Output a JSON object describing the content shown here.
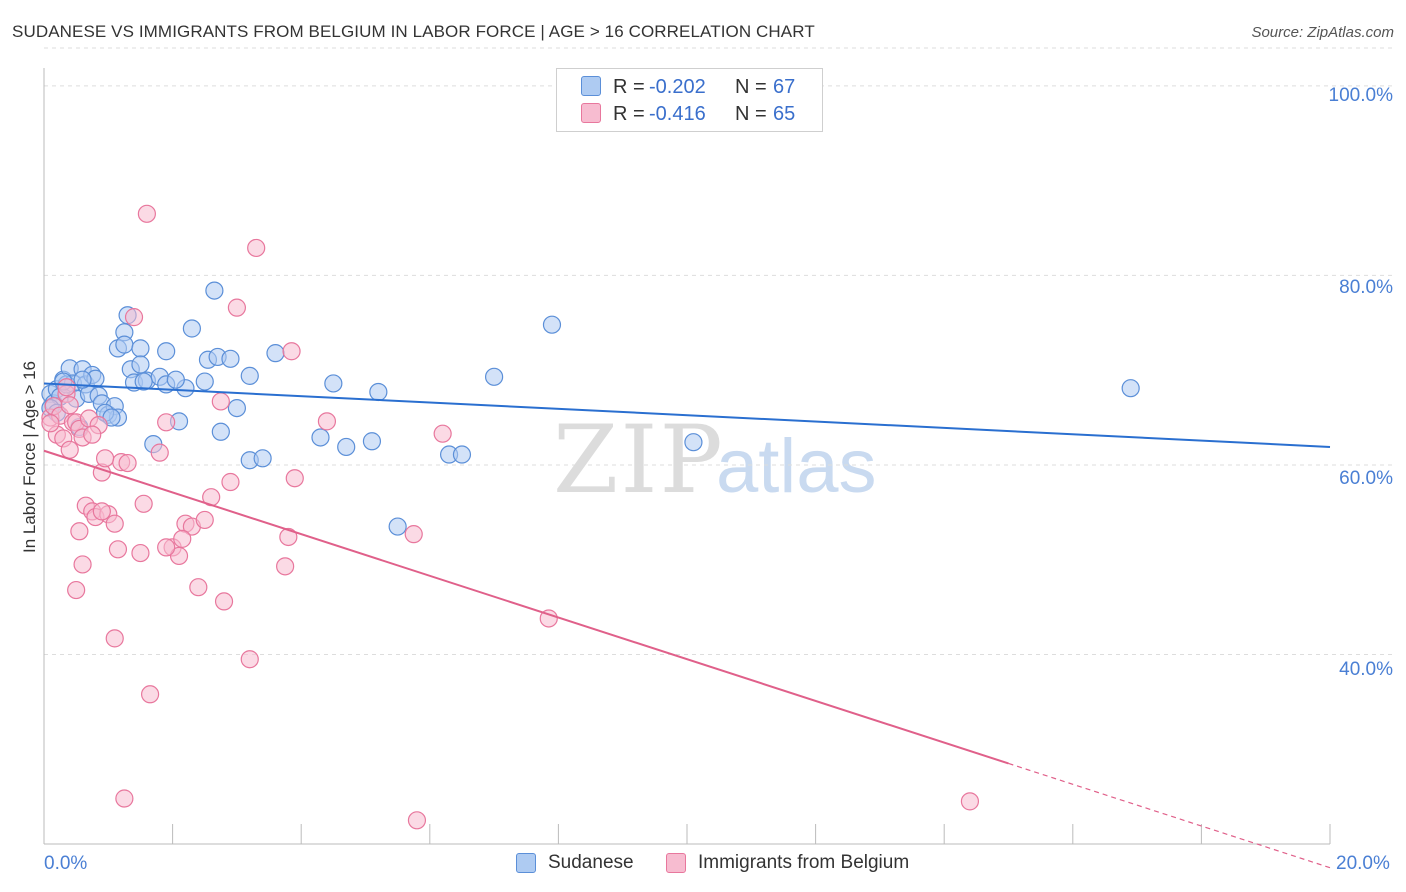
{
  "title": "SUDANESE VS IMMIGRANTS FROM BELGIUM IN LABOR FORCE | AGE > 16 CORRELATION CHART",
  "source": "Source: ZipAtlas.com",
  "watermark": {
    "zip": "ZIP",
    "atlas": "atlas"
  },
  "legend_top": {
    "rows": [
      {
        "r_label": "R =",
        "r_value": "-0.202",
        "n_label": "N =",
        "n_value": "67"
      },
      {
        "r_label": "R =",
        "r_value": "-0.416",
        "n_label": "N =",
        "n_value": "65"
      }
    ]
  },
  "legend_bottom": {
    "items": [
      "Sudanese",
      "Immigrants from Belgium"
    ]
  },
  "colors": {
    "blue_fill": "#aecbf2",
    "blue_stroke": "#5b8fd8",
    "blue_line": "#2a6fd0",
    "pink_fill": "#f7bcd0",
    "pink_stroke": "#e8779d",
    "pink_line": "#e0608a",
    "grid": "#dddddd",
    "tick_text": "#4a7fd4"
  },
  "chart_data": {
    "type": "scatter",
    "title": "SUDANESE VS IMMIGRANTS FROM BELGIUM IN LABOR FORCE | AGE > 16 CORRELATION CHART",
    "xlabel": "",
    "ylabel": "In Labor Force | Age > 16",
    "xlim": [
      0,
      20
    ],
    "ylim": [
      20,
      104
    ],
    "x_tick_labels": [
      "0.0%",
      "20.0%"
    ],
    "y_ticks": [
      40,
      60,
      80,
      100
    ],
    "y_tick_labels": [
      "40.0%",
      "60.0%",
      "80.0%",
      "100.0%"
    ],
    "grid": true,
    "legend_position": "top-center",
    "series": [
      {
        "name": "Sudanese",
        "R": -0.202,
        "N": 67,
        "trend": {
          "x": [
            0.0,
            20.0
          ],
          "y": [
            68.6,
            61.9
          ]
        },
        "points": [
          [
            0.1,
            67.5
          ],
          [
            0.15,
            66.5
          ],
          [
            0.2,
            68.0
          ],
          [
            0.25,
            67.2
          ],
          [
            0.3,
            69.0
          ],
          [
            0.35,
            68.5
          ],
          [
            0.4,
            70.2
          ],
          [
            0.45,
            68.6
          ],
          [
            0.5,
            67.0
          ],
          [
            0.55,
            64.0
          ],
          [
            0.6,
            70.1
          ],
          [
            0.65,
            68.5
          ],
          [
            0.7,
            67.5
          ],
          [
            0.75,
            69.5
          ],
          [
            0.8,
            69.1
          ],
          [
            0.85,
            67.3
          ],
          [
            0.9,
            66.5
          ],
          [
            1.0,
            65.3
          ],
          [
            1.1,
            66.2
          ],
          [
            1.15,
            65.0
          ],
          [
            1.25,
            74.0
          ],
          [
            1.3,
            75.8
          ],
          [
            1.35,
            70.1
          ],
          [
            1.4,
            68.7
          ],
          [
            1.15,
            72.3
          ],
          [
            1.25,
            72.7
          ],
          [
            1.5,
            72.3
          ],
          [
            1.5,
            70.6
          ],
          [
            1.6,
            68.9
          ],
          [
            1.7,
            62.2
          ],
          [
            1.8,
            69.3
          ],
          [
            1.9,
            72.0
          ],
          [
            1.9,
            68.5
          ],
          [
            2.1,
            64.6
          ],
          [
            2.2,
            68.1
          ],
          [
            2.3,
            74.4
          ],
          [
            2.5,
            68.8
          ],
          [
            2.55,
            71.1
          ],
          [
            2.65,
            78.4
          ],
          [
            2.7,
            71.4
          ],
          [
            2.75,
            63.5
          ],
          [
            2.9,
            71.2
          ],
          [
            3.0,
            66.0
          ],
          [
            3.2,
            69.4
          ],
          [
            3.2,
            60.5
          ],
          [
            3.4,
            60.7
          ],
          [
            3.6,
            71.8
          ],
          [
            4.3,
            62.9
          ],
          [
            4.5,
            68.6
          ],
          [
            4.7,
            61.9
          ],
          [
            5.1,
            62.5
          ],
          [
            5.2,
            67.7
          ],
          [
            5.5,
            53.5
          ],
          [
            6.3,
            61.1
          ],
          [
            6.5,
            61.1
          ],
          [
            7.0,
            69.3
          ],
          [
            7.9,
            74.8
          ],
          [
            10.1,
            62.4
          ],
          [
            16.9,
            68.1
          ],
          [
            0.1,
            66.0
          ],
          [
            0.2,
            65.5
          ],
          [
            0.3,
            68.8
          ],
          [
            0.6,
            69.0
          ],
          [
            0.95,
            65.5
          ],
          [
            1.05,
            65.0
          ],
          [
            1.55,
            68.8
          ],
          [
            2.05,
            69.0
          ]
        ]
      },
      {
        "name": "Immigrants from Belgium",
        "R": -0.416,
        "N": 65,
        "trend": {
          "x": [
            0.0,
            15.0
          ],
          "y": [
            61.5,
            28.5
          ]
        },
        "trend_dashed": {
          "x": [
            15.0,
            20.0
          ],
          "y": [
            28.5,
            17.5
          ]
        },
        "points": [
          [
            0.1,
            65.0
          ],
          [
            0.15,
            66.2
          ],
          [
            0.2,
            63.2
          ],
          [
            0.25,
            65.2
          ],
          [
            0.3,
            62.8
          ],
          [
            0.35,
            67.5
          ],
          [
            0.4,
            61.6
          ],
          [
            0.45,
            64.5
          ],
          [
            0.5,
            64.5
          ],
          [
            0.55,
            63.8
          ],
          [
            0.6,
            62.9
          ],
          [
            0.65,
            55.7
          ],
          [
            0.7,
            64.9
          ],
          [
            0.75,
            55.1
          ],
          [
            0.8,
            54.5
          ],
          [
            0.85,
            64.2
          ],
          [
            0.9,
            59.2
          ],
          [
            1.0,
            54.8
          ],
          [
            1.1,
            53.8
          ],
          [
            1.2,
            60.3
          ],
          [
            1.3,
            60.2
          ],
          [
            1.4,
            75.6
          ],
          [
            1.5,
            50.7
          ],
          [
            1.6,
            86.5
          ],
          [
            1.8,
            61.3
          ],
          [
            1.9,
            64.5
          ],
          [
            2.0,
            51.3
          ],
          [
            2.1,
            50.4
          ],
          [
            2.2,
            53.8
          ],
          [
            2.3,
            53.5
          ],
          [
            2.4,
            47.1
          ],
          [
            2.5,
            54.2
          ],
          [
            2.6,
            56.6
          ],
          [
            2.75,
            66.7
          ],
          [
            2.8,
            45.6
          ],
          [
            2.9,
            58.2
          ],
          [
            3.0,
            76.6
          ],
          [
            3.2,
            39.5
          ],
          [
            3.3,
            82.9
          ],
          [
            3.75,
            49.3
          ],
          [
            3.8,
            52.4
          ],
          [
            3.85,
            72.0
          ],
          [
            3.9,
            58.6
          ],
          [
            4.4,
            64.6
          ],
          [
            5.75,
            52.7
          ],
          [
            5.8,
            22.5
          ],
          [
            6.2,
            63.3
          ],
          [
            7.85,
            43.8
          ],
          [
            14.4,
            24.5
          ],
          [
            0.5,
            46.8
          ],
          [
            0.6,
            49.5
          ],
          [
            0.9,
            55.1
          ],
          [
            1.1,
            41.7
          ],
          [
            1.25,
            24.8
          ],
          [
            1.65,
            35.8
          ],
          [
            0.1,
            64.4
          ],
          [
            0.4,
            66.3
          ],
          [
            0.55,
            53.0
          ],
          [
            0.95,
            60.7
          ],
          [
            1.55,
            55.9
          ],
          [
            1.9,
            51.3
          ],
          [
            2.15,
            52.2
          ],
          [
            0.35,
            68.2
          ],
          [
            0.75,
            63.2
          ],
          [
            1.15,
            51.1
          ]
        ]
      }
    ]
  }
}
